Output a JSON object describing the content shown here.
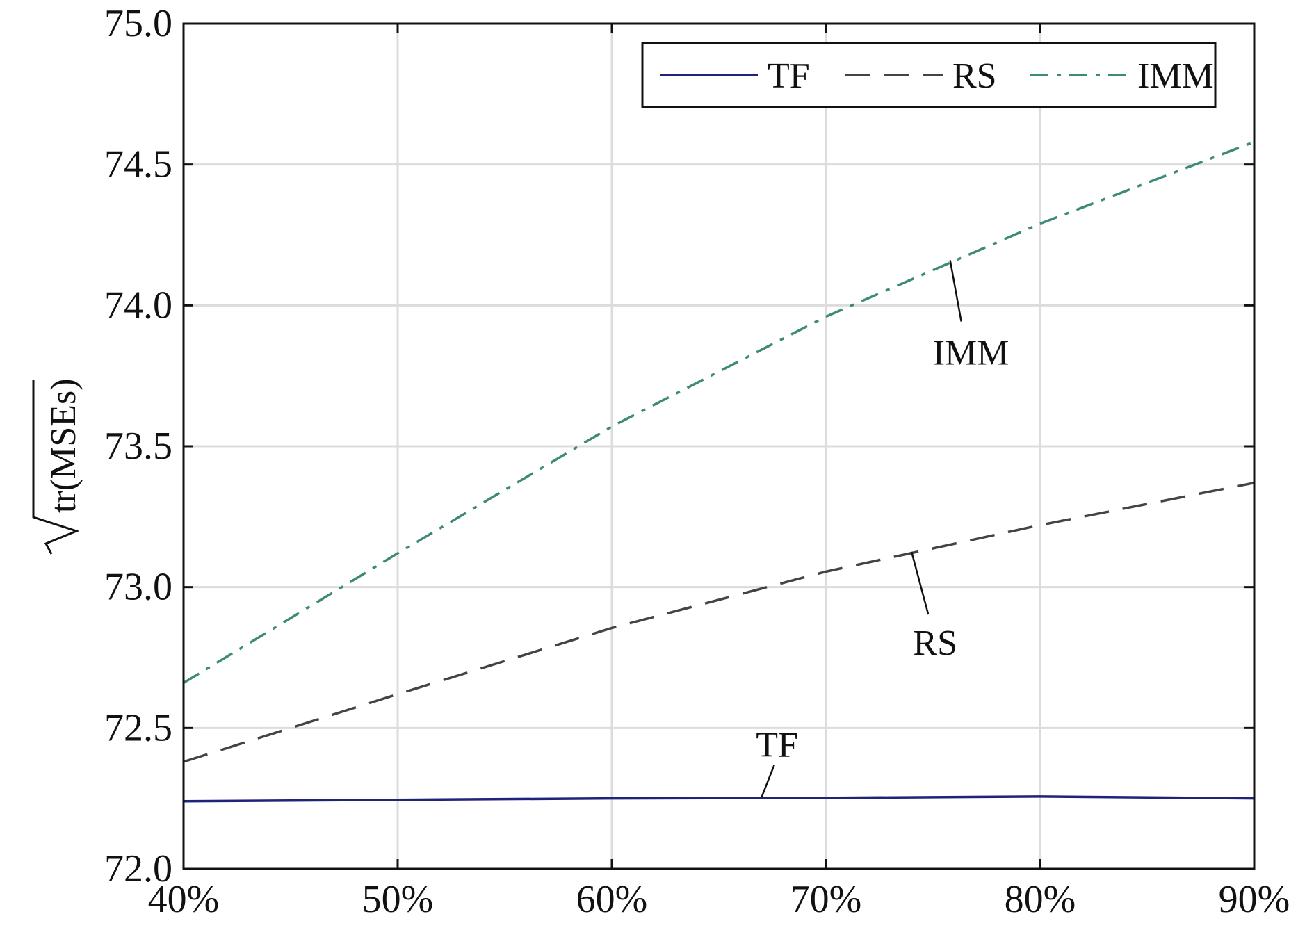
{
  "chart_data": {
    "type": "line",
    "title": "",
    "xlabel": "",
    "ylabel": "√tr(MSEs)",
    "ylabel_radicand": "tr(MSEs)",
    "x": [
      40,
      50,
      60,
      70,
      80,
      90
    ],
    "x_tick_labels": [
      "40%",
      "50%",
      "60%",
      "70%",
      "80%",
      "90%"
    ],
    "xlim": [
      40,
      90
    ],
    "ylim": [
      72.0,
      75.0
    ],
    "y_ticks": [
      72.0,
      72.5,
      73.0,
      73.5,
      74.0,
      74.5,
      75.0
    ],
    "y_tick_labels": [
      "72.0",
      "72.5",
      "73.0",
      "73.5",
      "74.0",
      "74.5",
      "75.0"
    ],
    "grid": true,
    "legend": {
      "position": "top-right",
      "horizontal": true
    },
    "series": [
      {
        "name": "TF",
        "color": "#1f237a",
        "dash": "solid",
        "values": [
          72.24,
          72.245,
          72.25,
          72.252,
          72.257,
          72.25
        ]
      },
      {
        "name": "RS",
        "color": "#444444",
        "dash": "dashed",
        "values": [
          72.38,
          72.62,
          72.855,
          73.055,
          73.22,
          73.37
        ]
      },
      {
        "name": "IMM",
        "color": "#3e8a78",
        "dash": "dashdot",
        "values": [
          72.66,
          73.12,
          73.57,
          73.96,
          74.29,
          74.58
        ]
      }
    ],
    "annotations": [
      {
        "text": "TF",
        "series": "TF",
        "x": 67,
        "y": 72.255
      },
      {
        "text": "RS",
        "series": "RS",
        "x": 74,
        "y": 73.125
      },
      {
        "text": "IMM",
        "series": "IMM",
        "x": 75.8,
        "y": 74.16
      }
    ]
  }
}
